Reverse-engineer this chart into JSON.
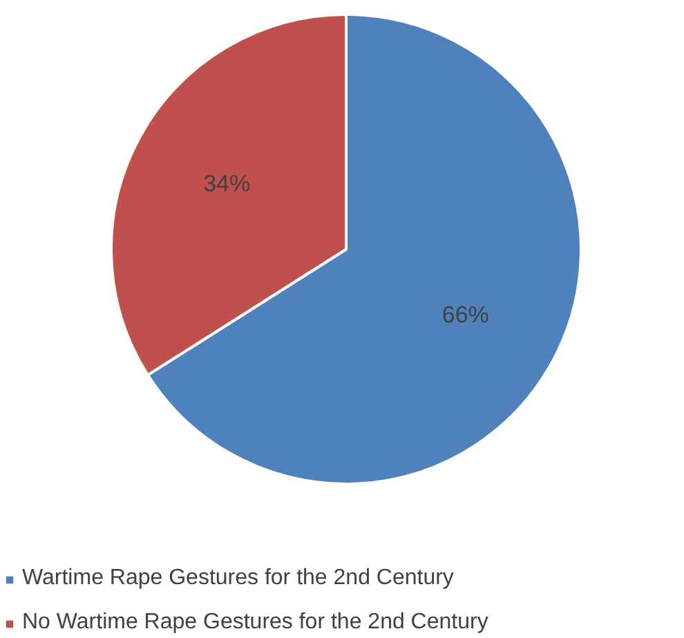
{
  "chart_data": {
    "type": "pie",
    "categories": [
      "Wartime Rape Gestures for the 2nd Century",
      "No Wartime Rape Gestures for the 2nd Century"
    ],
    "values": [
      66,
      34
    ],
    "colors": [
      "#4f81bd",
      "#c0504d"
    ],
    "value_labels": [
      "66%",
      "34%"
    ],
    "legend": "bottom"
  }
}
